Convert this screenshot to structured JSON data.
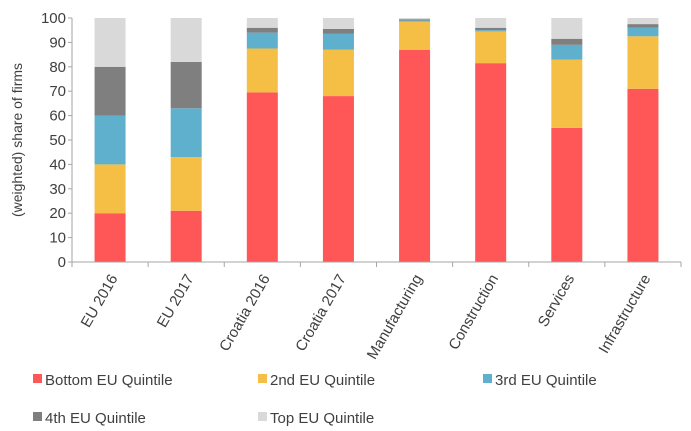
{
  "chart_data": {
    "type": "bar",
    "stacked": true,
    "title": "",
    "xlabel": "",
    "ylabel": "(weighted) share of firms",
    "ylim": [
      0,
      100
    ],
    "yticks": [
      0,
      10,
      20,
      30,
      40,
      50,
      60,
      70,
      80,
      90,
      100
    ],
    "grid": false,
    "legend_position": "bottom",
    "categories": [
      "EU 2016",
      "EU 2017",
      "Croatia 2016",
      "Croatia 2017",
      "Manufacturing",
      "Construction",
      "Services",
      "Infrastructure"
    ],
    "series": [
      {
        "name": "Bottom EU Quintile",
        "color": "#ff5757",
        "values": [
          20,
          21,
          69.5,
          68,
          87,
          81.5,
          55,
          71
        ]
      },
      {
        "name": "2nd EU Quintile",
        "color": "#f5bf45",
        "values": [
          20,
          22,
          18,
          19,
          11.5,
          13,
          28,
          21.5
        ]
      },
      {
        "name": "3rd EU Quintile",
        "color": "#5fb0cc",
        "values": [
          20,
          20,
          6.5,
          6.5,
          0.5,
          0.5,
          6,
          3.5
        ]
      },
      {
        "name": "4th EU Quintile",
        "color": "#7f7f7f",
        "values": [
          20,
          19,
          2,
          2,
          0.5,
          1,
          2.5,
          1.5
        ]
      },
      {
        "name": "Top EU Quintile",
        "color": "#d9d9d9",
        "values": [
          20,
          18,
          4,
          4.5,
          0.5,
          4,
          8.5,
          2.5
        ]
      }
    ]
  }
}
